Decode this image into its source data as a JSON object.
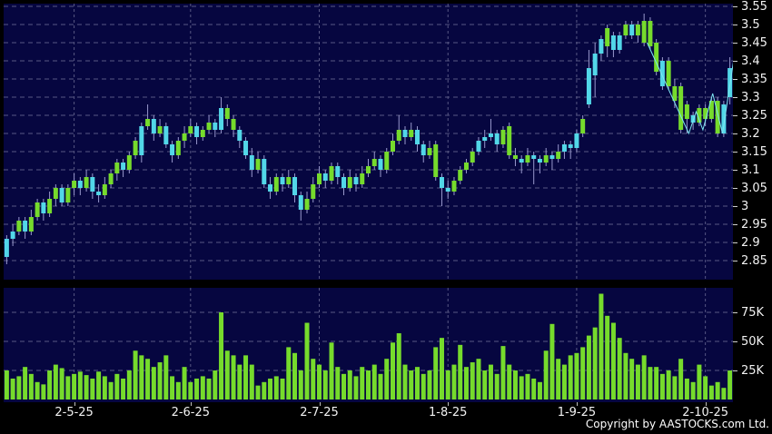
{
  "footer": {
    "copyright": "Copyright by AASTOCKS.com Ltd."
  },
  "colors": {
    "background": "#000000",
    "panel": "#060640",
    "grid": "#585884",
    "candle_green": "#76db2c",
    "candle_cyan": "#52d7e8",
    "wick": "#9898cc",
    "volume_bar": "#76db2c",
    "zigzag": "#7ee6f2",
    "text": "#f2f2f2"
  },
  "chart_data": [
    {
      "type": "candlestick",
      "title": "Daily price chart",
      "price_axis": {
        "tick_labels": [
          "3.55",
          "3.5",
          "3.45",
          "3.4",
          "3.35",
          "3.3",
          "3.25",
          "3.2",
          "3.15",
          "3.1",
          "3.05",
          "3",
          "2.95",
          "2.9",
          "2.85"
        ],
        "tick_values": [
          3.55,
          3.5,
          3.45,
          3.4,
          3.35,
          3.3,
          3.25,
          3.2,
          3.15,
          3.1,
          3.05,
          3.0,
          2.95,
          2.9,
          2.85
        ],
        "ylim": [
          2.8,
          3.5575
        ],
        "grid": "dashed"
      },
      "date_ticks": [
        {
          "label": "2-5-25",
          "index": 11
        },
        {
          "label": "2-6-25",
          "index": 30
        },
        {
          "label": "2-7-25",
          "index": 51
        },
        {
          "label": "1-8-25",
          "index": 72
        },
        {
          "label": "1-9-25",
          "index": 93
        },
        {
          "label": "2-10-25",
          "index": 114
        }
      ],
      "candles_format": [
        "open",
        "high",
        "low",
        "close",
        "color(g=green,c=cyan)"
      ],
      "candles": [
        [
          2.86,
          2.92,
          2.84,
          2.91,
          "c"
        ],
        [
          2.91,
          2.95,
          2.89,
          2.93,
          "c"
        ],
        [
          2.93,
          2.97,
          2.92,
          2.96,
          "g"
        ],
        [
          2.96,
          2.97,
          2.91,
          2.93,
          "c"
        ],
        [
          2.93,
          2.99,
          2.92,
          2.97,
          "g"
        ],
        [
          2.97,
          3.02,
          2.96,
          3.01,
          "g"
        ],
        [
          3.01,
          3.02,
          2.96,
          2.98,
          "c"
        ],
        [
          2.98,
          3.04,
          2.97,
          3.02,
          "g"
        ],
        [
          3.02,
          3.06,
          3.0,
          3.05,
          "g"
        ],
        [
          3.05,
          3.06,
          3.0,
          3.01,
          "c"
        ],
        [
          3.01,
          3.06,
          3.0,
          3.05,
          "g"
        ],
        [
          3.05,
          3.09,
          3.03,
          3.07,
          "g"
        ],
        [
          3.07,
          3.08,
          3.03,
          3.05,
          "c"
        ],
        [
          3.05,
          3.1,
          3.04,
          3.08,
          "g"
        ],
        [
          3.08,
          3.09,
          3.02,
          3.04,
          "c"
        ],
        [
          3.04,
          3.06,
          3.01,
          3.03,
          "c"
        ],
        [
          3.03,
          3.08,
          3.02,
          3.06,
          "g"
        ],
        [
          3.06,
          3.1,
          3.05,
          3.09,
          "g"
        ],
        [
          3.09,
          3.13,
          3.07,
          3.12,
          "g"
        ],
        [
          3.12,
          3.13,
          3.08,
          3.1,
          "c"
        ],
        [
          3.1,
          3.15,
          3.09,
          3.14,
          "g"
        ],
        [
          3.14,
          3.19,
          3.13,
          3.18,
          "g"
        ],
        [
          3.14,
          3.23,
          3.12,
          3.22,
          "c"
        ],
        [
          3.22,
          3.28,
          3.21,
          3.24,
          "g"
        ],
        [
          3.24,
          3.25,
          3.18,
          3.2,
          "c"
        ],
        [
          3.2,
          3.24,
          3.19,
          3.22,
          "g"
        ],
        [
          3.22,
          3.23,
          3.16,
          3.17,
          "c"
        ],
        [
          3.17,
          3.18,
          3.12,
          3.14,
          "c"
        ],
        [
          3.14,
          3.19,
          3.13,
          3.18,
          "g"
        ],
        [
          3.18,
          3.22,
          3.16,
          3.2,
          "g"
        ],
        [
          3.2,
          3.24,
          3.19,
          3.22,
          "g"
        ],
        [
          3.22,
          3.23,
          3.17,
          3.19,
          "c"
        ],
        [
          3.19,
          3.22,
          3.18,
          3.21,
          "g"
        ],
        [
          3.21,
          3.25,
          3.2,
          3.23,
          "g"
        ],
        [
          3.23,
          3.24,
          3.19,
          3.21,
          "c"
        ],
        [
          3.21,
          3.3,
          3.2,
          3.27,
          "c"
        ],
        [
          3.27,
          3.28,
          3.22,
          3.24,
          "g"
        ],
        [
          3.24,
          3.25,
          3.19,
          3.21,
          "g"
        ],
        [
          3.21,
          3.22,
          3.16,
          3.18,
          "c"
        ],
        [
          3.18,
          3.19,
          3.13,
          3.14,
          "c"
        ],
        [
          3.14,
          3.16,
          3.08,
          3.1,
          "c"
        ],
        [
          3.1,
          3.15,
          3.09,
          3.13,
          "g"
        ],
        [
          3.13,
          3.14,
          3.05,
          3.06,
          "c"
        ],
        [
          3.06,
          3.08,
          3.02,
          3.04,
          "c"
        ],
        [
          3.04,
          3.09,
          3.03,
          3.08,
          "g"
        ],
        [
          3.08,
          3.09,
          3.04,
          3.06,
          "c"
        ],
        [
          3.06,
          3.1,
          3.05,
          3.08,
          "g"
        ],
        [
          3.08,
          3.09,
          3.01,
          3.03,
          "c"
        ],
        [
          3.03,
          3.04,
          2.96,
          2.99,
          "c"
        ],
        [
          2.99,
          3.04,
          2.98,
          3.02,
          "g"
        ],
        [
          3.02,
          3.08,
          3.01,
          3.06,
          "g"
        ],
        [
          3.06,
          3.11,
          3.05,
          3.09,
          "g"
        ],
        [
          3.09,
          3.1,
          3.05,
          3.07,
          "c"
        ],
        [
          3.07,
          3.12,
          3.06,
          3.11,
          "g"
        ],
        [
          3.11,
          3.12,
          3.06,
          3.08,
          "c"
        ],
        [
          3.08,
          3.09,
          3.03,
          3.05,
          "c"
        ],
        [
          3.05,
          3.1,
          3.04,
          3.08,
          "g"
        ],
        [
          3.08,
          3.09,
          3.04,
          3.06,
          "c"
        ],
        [
          3.06,
          3.11,
          3.05,
          3.09,
          "g"
        ],
        [
          3.09,
          3.13,
          3.08,
          3.11,
          "g"
        ],
        [
          3.11,
          3.15,
          3.1,
          3.13,
          "g"
        ],
        [
          3.13,
          3.14,
          3.08,
          3.1,
          "c"
        ],
        [
          3.1,
          3.16,
          3.09,
          3.15,
          "g"
        ],
        [
          3.15,
          3.2,
          3.14,
          3.18,
          "g"
        ],
        [
          3.18,
          3.25,
          3.17,
          3.21,
          "g"
        ],
        [
          3.21,
          3.22,
          3.17,
          3.19,
          "c"
        ],
        [
          3.19,
          3.23,
          3.18,
          3.21,
          "g"
        ],
        [
          3.21,
          3.22,
          3.15,
          3.17,
          "c"
        ],
        [
          3.17,
          3.18,
          3.12,
          3.14,
          "c"
        ],
        [
          3.14,
          3.18,
          3.13,
          3.16,
          "g"
        ],
        [
          3.17,
          3.18,
          3.07,
          3.08,
          "g"
        ],
        [
          3.08,
          3.09,
          3.0,
          3.05,
          "c"
        ],
        [
          3.05,
          3.07,
          3.02,
          3.04,
          "c"
        ],
        [
          3.04,
          3.08,
          3.03,
          3.07,
          "g"
        ],
        [
          3.07,
          3.11,
          3.06,
          3.1,
          "g"
        ],
        [
          3.1,
          3.13,
          3.09,
          3.12,
          "g"
        ],
        [
          3.12,
          3.16,
          3.11,
          3.15,
          "g"
        ],
        [
          3.15,
          3.19,
          3.14,
          3.18,
          "c"
        ],
        [
          3.18,
          3.21,
          3.16,
          3.19,
          "c"
        ],
        [
          3.19,
          3.24,
          3.18,
          3.2,
          "c"
        ],
        [
          3.2,
          3.21,
          3.15,
          3.17,
          "c"
        ],
        [
          3.17,
          3.22,
          3.16,
          3.21,
          "g"
        ],
        [
          3.22,
          3.23,
          3.13,
          3.14,
          "g"
        ],
        [
          3.14,
          3.16,
          3.11,
          3.13,
          "g"
        ],
        [
          3.13,
          3.14,
          3.09,
          3.12,
          "c"
        ],
        [
          3.12,
          3.16,
          3.11,
          3.14,
          "g"
        ],
        [
          3.14,
          3.15,
          3.06,
          3.13,
          "c"
        ],
        [
          3.13,
          3.14,
          3.09,
          3.12,
          "c"
        ],
        [
          3.12,
          3.16,
          3.11,
          3.14,
          "g"
        ],
        [
          3.14,
          3.15,
          3.1,
          3.13,
          "c"
        ],
        [
          3.13,
          3.17,
          3.12,
          3.15,
          "g"
        ],
        [
          3.15,
          3.18,
          3.13,
          3.17,
          "c"
        ],
        [
          3.17,
          3.18,
          3.13,
          3.16,
          "c"
        ],
        [
          3.16,
          3.21,
          3.15,
          3.2,
          "c"
        ],
        [
          3.2,
          3.25,
          3.19,
          3.24,
          "g"
        ],
        [
          3.28,
          3.43,
          3.27,
          3.38,
          "c"
        ],
        [
          3.36,
          3.45,
          3.3,
          3.42,
          "c"
        ],
        [
          3.42,
          3.47,
          3.4,
          3.46,
          "c"
        ],
        [
          3.44,
          3.5,
          3.41,
          3.49,
          "g"
        ],
        [
          3.47,
          3.48,
          3.41,
          3.43,
          "c"
        ],
        [
          3.43,
          3.48,
          3.42,
          3.47,
          "c"
        ],
        [
          3.47,
          3.51,
          3.46,
          3.5,
          "g"
        ],
        [
          3.5,
          3.51,
          3.46,
          3.47,
          "c"
        ],
        [
          3.47,
          3.51,
          3.45,
          3.5,
          "g"
        ],
        [
          3.45,
          3.53,
          3.44,
          3.51,
          "g"
        ],
        [
          3.51,
          3.52,
          3.43,
          3.44,
          "g"
        ],
        [
          3.45,
          3.46,
          3.36,
          3.37,
          "g"
        ],
        [
          3.33,
          3.41,
          3.32,
          3.4,
          "c"
        ],
        [
          3.4,
          3.41,
          3.32,
          3.33,
          "g"
        ],
        [
          3.33,
          3.35,
          3.27,
          3.29,
          "g"
        ],
        [
          3.33,
          3.34,
          3.2,
          3.21,
          "g"
        ],
        [
          3.28,
          3.29,
          3.2,
          3.24,
          "g"
        ],
        [
          3.25,
          3.26,
          3.21,
          3.23,
          "c"
        ],
        [
          3.23,
          3.28,
          3.22,
          3.27,
          "g"
        ],
        [
          3.27,
          3.28,
          3.22,
          3.24,
          "g"
        ],
        [
          3.24,
          3.3,
          3.23,
          3.29,
          "g"
        ],
        [
          3.29,
          3.3,
          3.19,
          3.2,
          "g"
        ],
        [
          3.2,
          3.29,
          3.19,
          3.28,
          "c"
        ],
        [
          3.3,
          3.41,
          3.28,
          3.38,
          "c"
        ]
      ],
      "overlay_zigzag": [
        [
          104.5,
          3.45
        ],
        [
          111.3,
          3.2
        ],
        [
          112.5,
          3.26
        ],
        [
          113.6,
          3.21
        ],
        [
          115.2,
          3.31
        ],
        [
          116.8,
          3.2
        ],
        [
          118.6,
          3.4
        ]
      ]
    },
    {
      "type": "bar",
      "title": "Volume",
      "axis_tick_labels": [
        "75K",
        "50K",
        "25K"
      ],
      "axis_tick_values": [
        75,
        50,
        25
      ],
      "ylim_k": [
        0,
        96
      ],
      "values_k": [
        25,
        18,
        20,
        28,
        22,
        15,
        13,
        25,
        30,
        27,
        20,
        22,
        24,
        21,
        18,
        24,
        20,
        15,
        22,
        18,
        25,
        42,
        38,
        35,
        28,
        32,
        38,
        20,
        15,
        28,
        15,
        18,
        20,
        18,
        25,
        75,
        42,
        38,
        30,
        38,
        30,
        12,
        15,
        18,
        20,
        18,
        45,
        40,
        25,
        66,
        35,
        30,
        25,
        49,
        28,
        22,
        25,
        20,
        28,
        25,
        30,
        22,
        35,
        49,
        57,
        30,
        25,
        28,
        22,
        25,
        45,
        53,
        25,
        30,
        47,
        28,
        32,
        35,
        25,
        30,
        22,
        46,
        30,
        25,
        20,
        22,
        18,
        15,
        42,
        65,
        35,
        30,
        38,
        40,
        45,
        55,
        62,
        91,
        72,
        66,
        53,
        40,
        35,
        30,
        38,
        28,
        28,
        22,
        25,
        20,
        35,
        18,
        15,
        30,
        20,
        12,
        15,
        10,
        25
      ]
    }
  ]
}
